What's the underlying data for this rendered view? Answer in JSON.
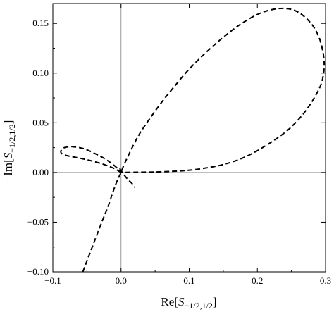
{
  "chart_data": {
    "type": "line",
    "title": "",
    "xlabel": {
      "pre": "Re[",
      "var": "S",
      "sub": "−1/2,1/2",
      "post": "]"
    },
    "ylabel": {
      "pre": "−Im[",
      "var": "S",
      "sub": "−1/2,1/2",
      "post": "]"
    },
    "xlim": [
      -0.1,
      0.3
    ],
    "ylim": [
      -0.1,
      0.17
    ],
    "x_ticks": [
      -0.1,
      0.0,
      0.1,
      0.2,
      0.3
    ],
    "x_tick_labels": [
      "−0.1",
      "0.0",
      "0.1",
      "0.2",
      "0.3"
    ],
    "y_ticks": [
      -0.1,
      -0.05,
      0.0,
      0.05,
      0.1,
      0.15
    ],
    "y_tick_labels": [
      "−0.10",
      "−0.05",
      "0.00",
      "0.05",
      "0.10",
      "0.15"
    ],
    "zero_axes": true,
    "grid": false,
    "line_style": "dashed",
    "line_color": "#000000",
    "series": [
      {
        "x": [
          -0.056,
          -0.045,
          -0.035,
          -0.027,
          -0.019,
          -0.012,
          -0.006,
          -0.002,
          0.0,
          0.004,
          0.01,
          0.02,
          0.03,
          0.045,
          0.06,
          0.08,
          0.1,
          0.125,
          0.15,
          0.175,
          0.2,
          0.222,
          0.242,
          0.258,
          0.272,
          0.283,
          0.291,
          0.296,
          0.298,
          0.297,
          0.293,
          0.285,
          0.275,
          0.26,
          0.24,
          0.21,
          0.18,
          0.15,
          0.12,
          0.095,
          0.07,
          0.048,
          0.03,
          0.015,
          0.005,
          0.0
        ],
        "y": [
          -0.1,
          -0.08,
          -0.062,
          -0.048,
          -0.034,
          -0.02,
          -0.009,
          -0.003,
          0.0,
          0.007,
          0.016,
          0.03,
          0.042,
          0.057,
          0.071,
          0.088,
          0.104,
          0.121,
          0.136,
          0.149,
          0.159,
          0.164,
          0.165,
          0.162,
          0.155,
          0.146,
          0.135,
          0.122,
          0.11,
          0.099,
          0.088,
          0.077,
          0.066,
          0.053,
          0.04,
          0.026,
          0.015,
          0.008,
          0.004,
          0.002,
          0.001,
          0.0005,
          0.0003,
          0.0002,
          0.0001,
          0.0
        ]
      },
      {
        "x": [
          0.0,
          -0.01,
          -0.025,
          -0.045,
          -0.065,
          -0.08,
          -0.087,
          -0.088,
          -0.083,
          -0.072,
          -0.055,
          -0.038,
          -0.022,
          -0.01,
          -0.002,
          0.0
        ],
        "y": [
          0.0,
          0.004,
          0.008,
          0.012,
          0.015,
          0.017,
          0.019,
          0.022,
          0.025,
          0.026,
          0.024,
          0.019,
          0.013,
          0.007,
          0.002,
          0.0
        ]
      },
      {
        "x": [
          -0.002,
          0.004,
          0.01,
          0.016,
          0.02
        ],
        "y": [
          0.004,
          -0.002,
          -0.007,
          -0.011,
          -0.015
        ]
      }
    ]
  }
}
